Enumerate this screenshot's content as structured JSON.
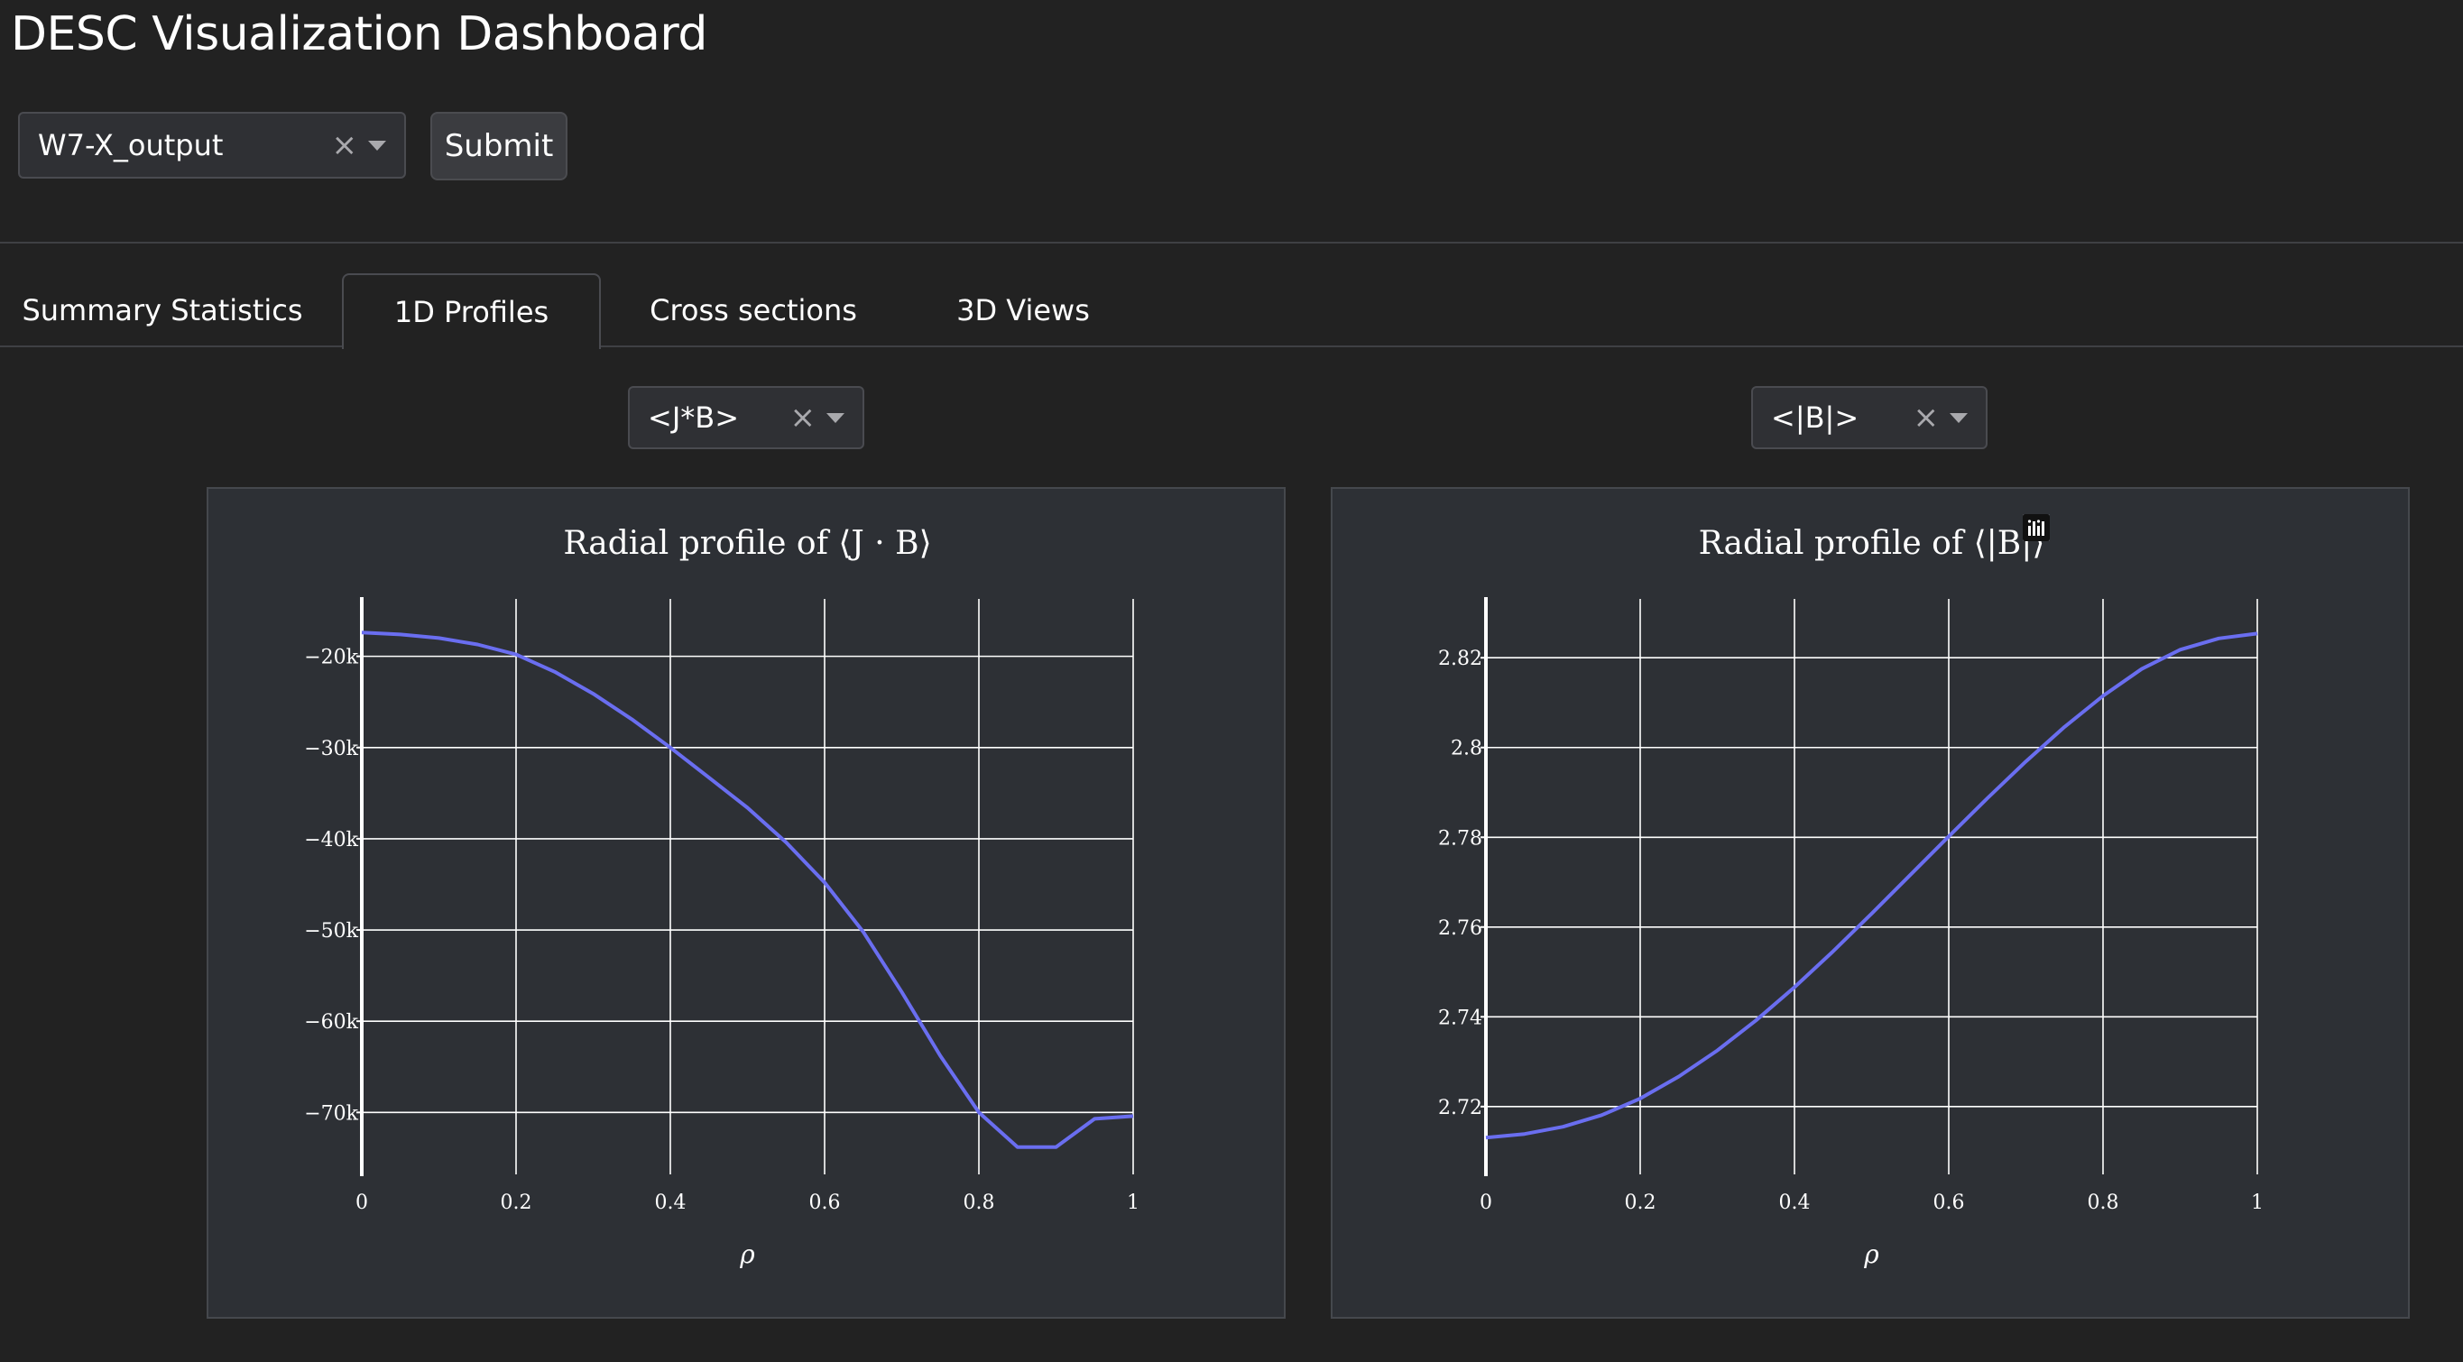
{
  "app": {
    "title": "DESC Visualization Dashboard"
  },
  "controls": {
    "file_select": {
      "value": "W7-X_output",
      "clear": "×"
    },
    "submit_label": "Submit"
  },
  "tabs": [
    {
      "label": "Summary Statistics",
      "active": false
    },
    {
      "label": "1D Profiles",
      "active": true
    },
    {
      "label": "Cross sections",
      "active": false
    },
    {
      "label": "3D Views",
      "active": false
    }
  ],
  "left_select": {
    "value": "<J*B>",
    "clear": "×"
  },
  "right_select": {
    "value": "<|B|>",
    "clear": "×"
  },
  "toolbar_icons": [
    "camera-icon",
    "zoom-icon",
    "pan-icon",
    "zoom-in-icon",
    "zoom-out-icon",
    "autoscale-icon",
    "reset-axes-icon",
    "plotly-logo-icon"
  ],
  "colors": {
    "line": "#6a6ef0",
    "grid": "#ffffff",
    "panel": "#2d3035",
    "page": "#222222"
  },
  "chart_data": [
    {
      "type": "line",
      "title": "Radial profile of ⟨J · B⟩",
      "xlabel": "ρ",
      "ylabel": "",
      "xlim": [
        0,
        1
      ],
      "ylim": [
        -76000,
        -14500
      ],
      "x_ticks": [
        0,
        0.2,
        0.4,
        0.6,
        0.8,
        1
      ],
      "x_tick_labels": [
        "0",
        "0.2",
        "0.4",
        "0.6",
        "0.8",
        "1"
      ],
      "y_ticks": [
        -20000,
        -30000,
        -40000,
        -50000,
        -60000,
        -70000
      ],
      "y_tick_labels": [
        "−20k",
        "−30k",
        "−40k",
        "−50k",
        "−60k",
        "−70k"
      ],
      "grid": true,
      "series": [
        {
          "x": [
            0,
            0.05,
            0.1,
            0.15,
            0.2,
            0.25,
            0.3,
            0.35,
            0.4,
            0.45,
            0.5,
            0.55,
            0.6,
            0.65,
            0.7,
            0.75,
            0.8,
            0.85,
            0.9,
            0.95,
            1
          ],
          "y": [
            -17400,
            -17600,
            -18000,
            -18700,
            -19800,
            -21700,
            -24100,
            -26900,
            -30000,
            -33300,
            -36600,
            -40400,
            -44800,
            -50200,
            -56800,
            -63800,
            -70000,
            -73800,
            -73800,
            -70700,
            -70400
          ]
        }
      ]
    },
    {
      "type": "line",
      "title": "Radial profile of ⟨|B|⟩",
      "xlabel": "ρ",
      "ylabel": "",
      "xlim": [
        0,
        1
      ],
      "ylim": [
        2.7065,
        2.8315
      ],
      "x_ticks": [
        0,
        0.2,
        0.4,
        0.6,
        0.8,
        1
      ],
      "x_tick_labels": [
        "0",
        "0.2",
        "0.4",
        "0.6",
        "0.8",
        "1"
      ],
      "y_ticks": [
        2.72,
        2.74,
        2.76,
        2.78,
        2.8,
        2.82
      ],
      "y_tick_labels": [
        "2.72",
        "2.74",
        "2.76",
        "2.78",
        "2.8",
        "2.82"
      ],
      "grid": true,
      "series": [
        {
          "x": [
            0,
            0.05,
            0.1,
            0.15,
            0.2,
            0.25,
            0.3,
            0.35,
            0.4,
            0.45,
            0.5,
            0.55,
            0.6,
            0.65,
            0.7,
            0.75,
            0.8,
            0.85,
            0.9,
            0.95,
            1
          ],
          "y": [
            2.7131,
            2.7139,
            2.7155,
            2.7181,
            2.7218,
            2.7267,
            2.7325,
            2.7392,
            2.7466,
            2.7546,
            2.763,
            2.7716,
            2.7802,
            2.7887,
            2.7969,
            2.8046,
            2.8115,
            2.8175,
            2.8218,
            2.8243,
            2.8254
          ]
        }
      ]
    }
  ]
}
